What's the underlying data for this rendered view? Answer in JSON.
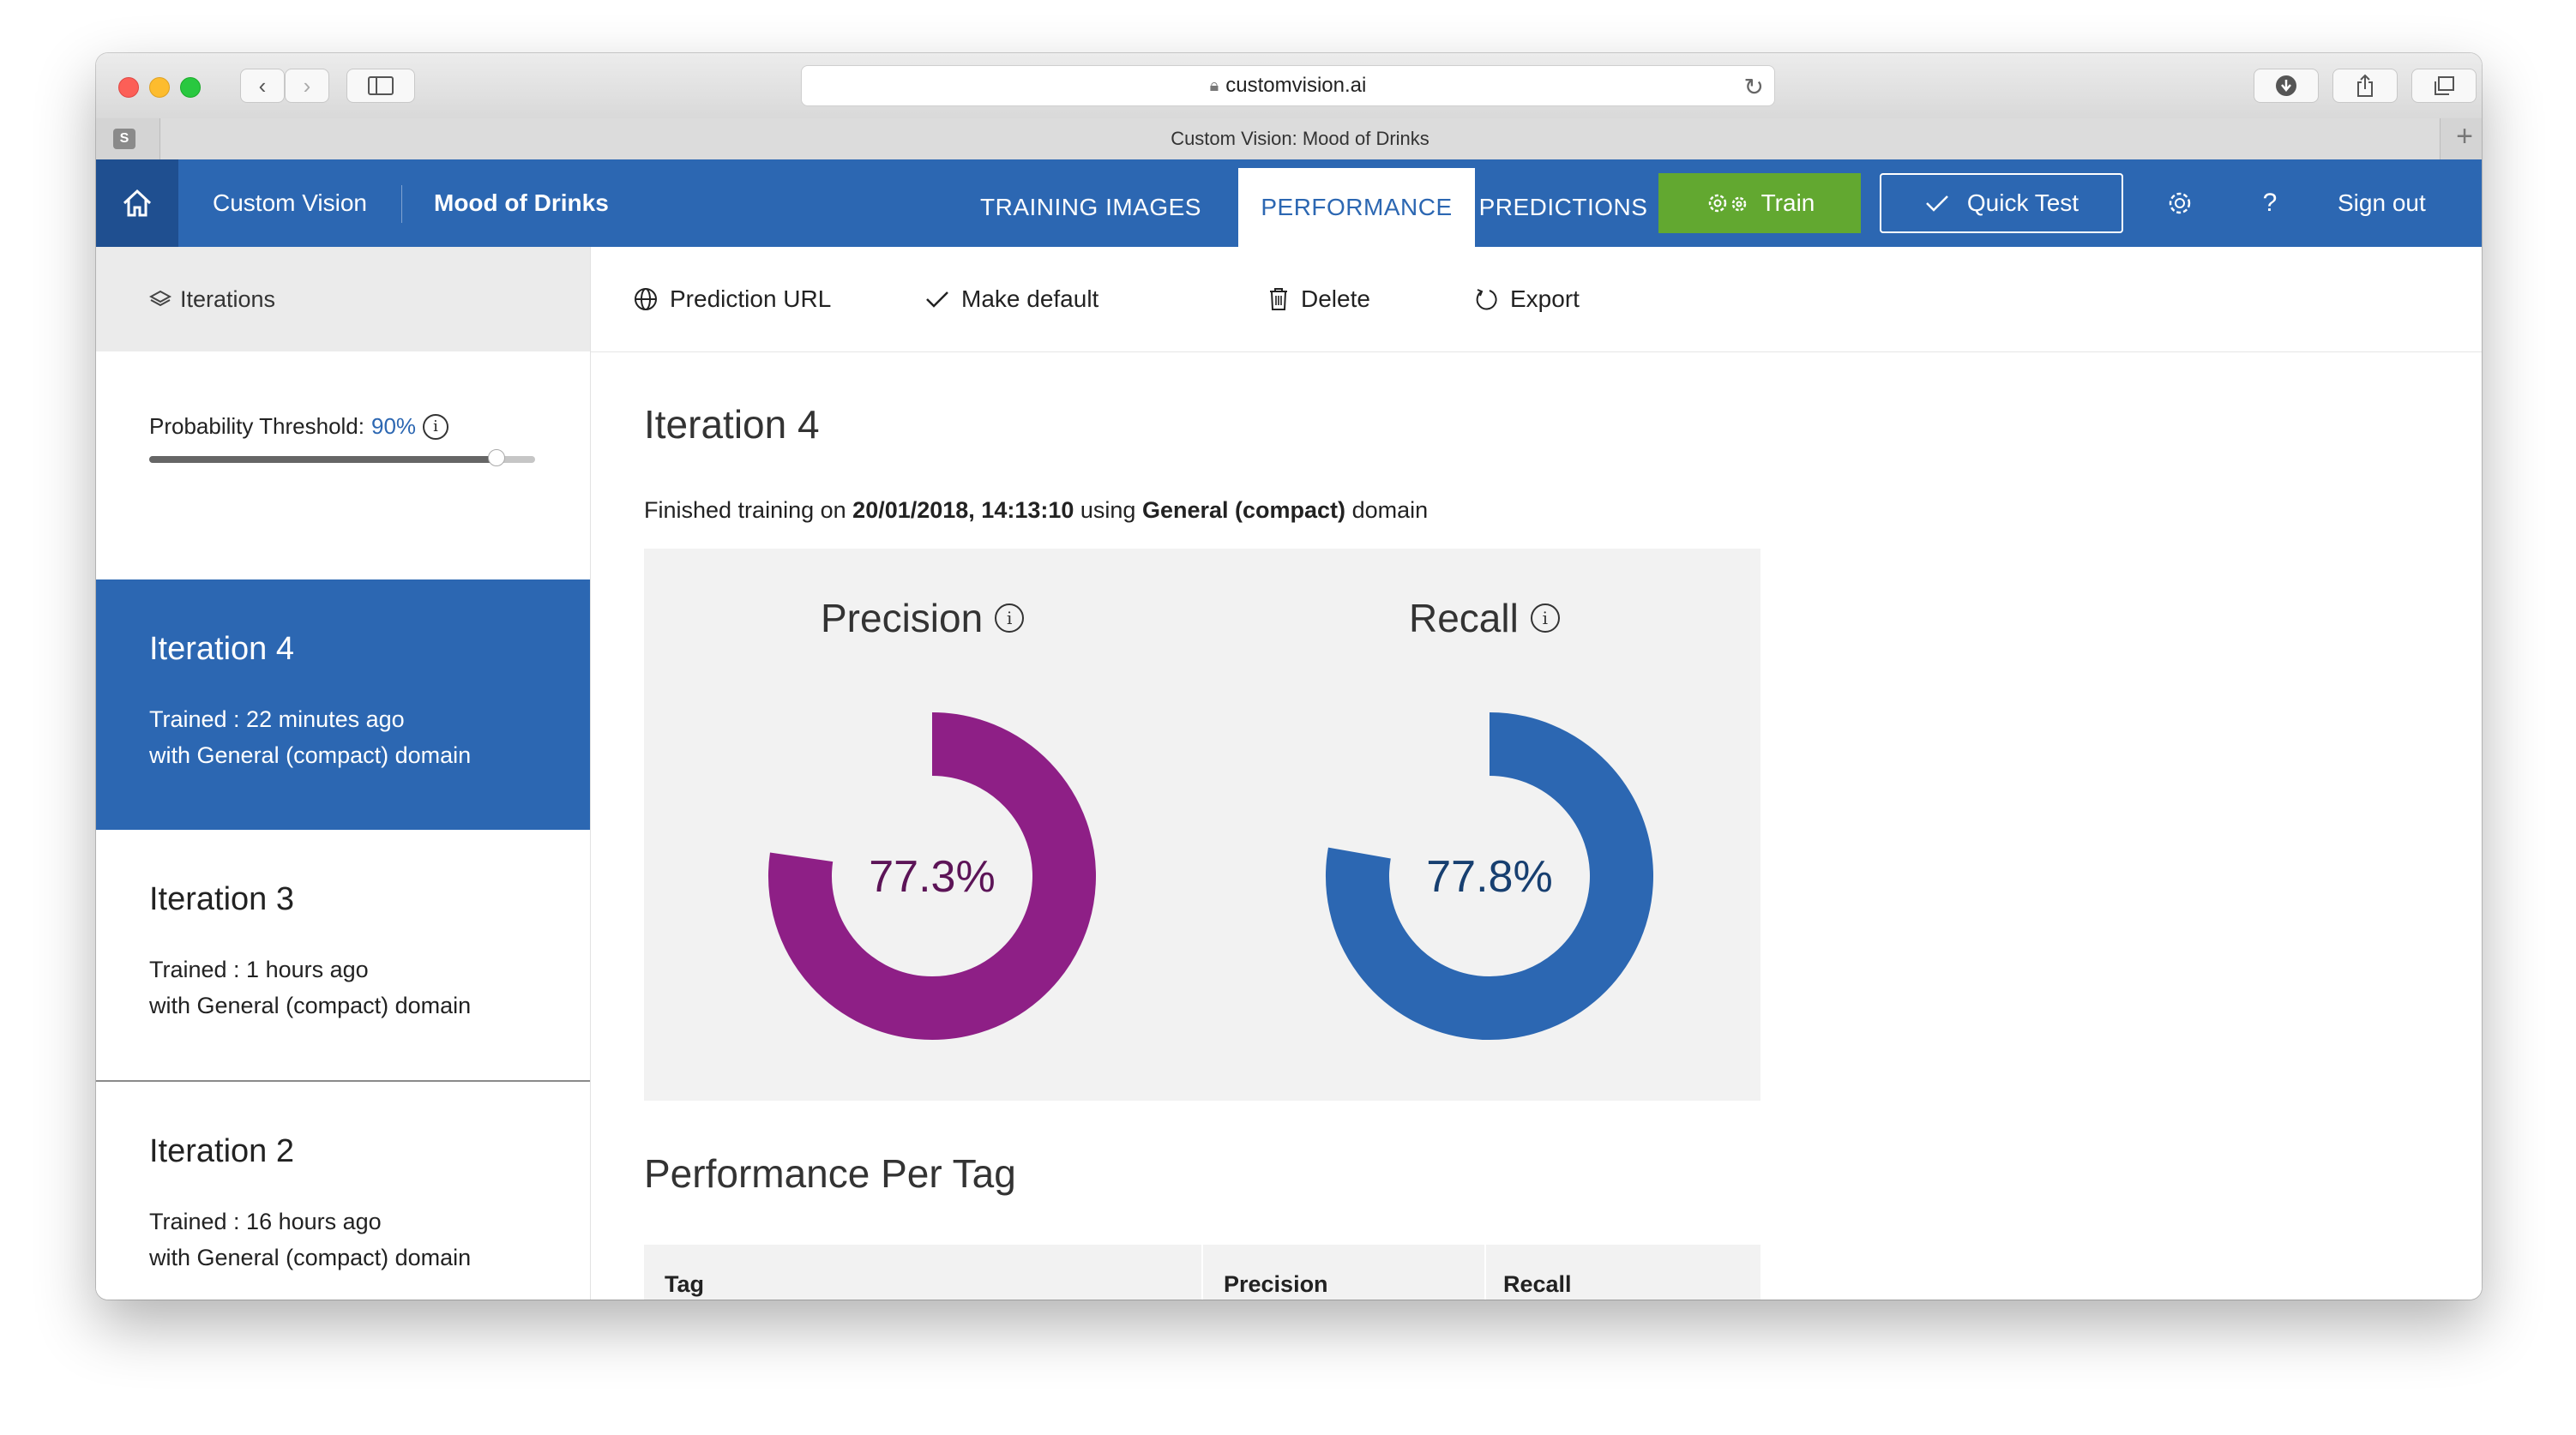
{
  "browser": {
    "url": "customvision.ai",
    "tab_title": "Custom Vision: Mood of Drinks",
    "tab_badge": "S"
  },
  "appnav": {
    "brand": "Custom Vision",
    "project": "Mood of Drinks",
    "tabs": [
      {
        "label": "TRAINING IMAGES",
        "active": false
      },
      {
        "label": "PERFORMANCE",
        "active": true
      },
      {
        "label": "PREDICTIONS",
        "active": false
      }
    ],
    "train_label": "Train",
    "quick_test_label": "Quick Test",
    "help_label": "?",
    "sign_out_label": "Sign out"
  },
  "sidebar": {
    "header": "Iterations",
    "threshold_label": "Probability Threshold:",
    "threshold_value": "90%",
    "threshold_fraction": 0.9,
    "iterations": [
      {
        "name": "Iteration 4",
        "trained": "Trained : 22 minutes ago",
        "domain": "with General (compact) domain",
        "active": true
      },
      {
        "name": "Iteration 3",
        "trained": "Trained : 1 hours ago",
        "domain": "with General (compact) domain",
        "active": false
      },
      {
        "name": "Iteration 2",
        "trained": "Trained : 16 hours ago",
        "domain": "with General (compact) domain",
        "active": false
      }
    ]
  },
  "actions": {
    "prediction_url": "Prediction URL",
    "make_default": "Make default",
    "delete": "Delete",
    "export": "Export"
  },
  "main": {
    "iteration_title": "Iteration 4",
    "finished_prefix": "Finished training on",
    "finished_date": "20/01/2018, 14:13:10",
    "finished_mid": "using",
    "finished_domain": "General (compact)",
    "finished_suffix": "domain",
    "precision": {
      "label": "Precision",
      "value_text": "77.3%",
      "value": 77.3,
      "color": "#8e1f86",
      "text_color": "#5c1457"
    },
    "recall": {
      "label": "Recall",
      "value_text": "77.8%",
      "value": 77.8,
      "color": "#2c67b2",
      "text_color": "#173f70"
    },
    "per_tag_title": "Performance Per Tag",
    "table_headers": [
      "Tag",
      "Precision",
      "Recall"
    ]
  },
  "colors": {
    "nav_blue": "#2c67b2",
    "home_blue": "#1f4f90",
    "train_green": "#62a830"
  }
}
